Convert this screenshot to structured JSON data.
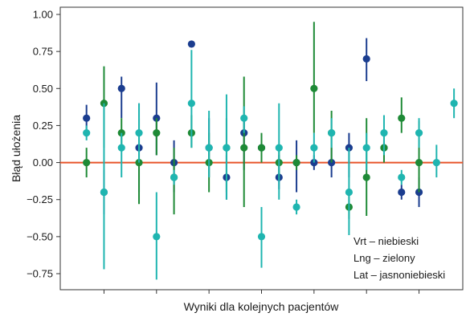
{
  "chart_data": {
    "type": "scatter",
    "title": "",
    "xlabel": "Wyniki dla kolejnych pacjentów",
    "ylabel": "Błąd ułożenia",
    "ylim": [
      -0.84,
      1.02
    ],
    "yticks": [
      "1.00",
      "0.75",
      "0.50",
      "0.25",
      "0.00",
      "−0.25",
      "−0.50",
      "−0.75"
    ],
    "ytick_values": [
      1.0,
      0.75,
      0.5,
      0.25,
      0.0,
      -0.25,
      -0.5,
      -0.75
    ],
    "xlim": [
      0,
      22
    ],
    "xticks": [
      2,
      5,
      8,
      11,
      14,
      17,
      20
    ],
    "grid": false,
    "reference_line": {
      "y": 0.0,
      "color": "#e8542a"
    },
    "legend_placement": "bottom-right",
    "legend_lines": [
      "Vrt – niebieski",
      "Lng – zielony",
      "Lat – jasnoniebieski"
    ],
    "series": [
      {
        "key": "vrt",
        "color": "#1b3d8f",
        "points": [
          {
            "x": 1,
            "y": 0.3,
            "lo": 0.2,
            "hi": 0.39
          },
          {
            "x": 2,
            "y": -0.2,
            "lo": -0.35,
            "hi": -0.05
          },
          {
            "x": 3,
            "y": 0.5,
            "lo": 0.3,
            "hi": 0.58
          },
          {
            "x": 4,
            "y": 0.1,
            "lo": -0.2,
            "hi": 0.4
          },
          {
            "x": 5,
            "y": 0.3,
            "lo": 0.05,
            "hi": 0.54
          },
          {
            "x": 6,
            "y": 0.0,
            "lo": -0.2,
            "hi": 0.15
          },
          {
            "x": 7,
            "y": 0.8,
            "lo": 0.8,
            "hi": 0.8
          },
          {
            "x": 8,
            "y": 0.1,
            "lo": -0.1,
            "hi": 0.3
          },
          {
            "x": 9,
            "y": -0.1,
            "lo": -0.25,
            "hi": 0.05
          },
          {
            "x": 10,
            "y": 0.2,
            "lo": -0.05,
            "hi": 0.3
          },
          {
            "x": 11,
            "y": 0.1,
            "lo": 0.05,
            "hi": 0.15
          },
          {
            "x": 12,
            "y": -0.1,
            "lo": -0.18,
            "hi": 0.05
          },
          {
            "x": 13,
            "y": 0.0,
            "lo": -0.2,
            "hi": 0.15
          },
          {
            "x": 14,
            "y": 0.0,
            "lo": -0.05,
            "hi": 0.05
          },
          {
            "x": 15,
            "y": 0.0,
            "lo": -0.1,
            "hi": 0.1
          },
          {
            "x": 16,
            "y": 0.1,
            "lo": -0.1,
            "hi": 0.2
          },
          {
            "x": 17,
            "y": 0.7,
            "lo": 0.55,
            "hi": 0.84
          },
          {
            "x": 18,
            "y": 0.1,
            "lo": 0.05,
            "hi": 0.15
          },
          {
            "x": 19,
            "y": -0.2,
            "lo": -0.25,
            "hi": -0.15
          },
          {
            "x": 20,
            "y": -0.2,
            "lo": -0.3,
            "hi": -0.1
          }
        ]
      },
      {
        "key": "lng",
        "color": "#1e8a36",
        "points": [
          {
            "x": 1,
            "y": 0.0,
            "lo": -0.1,
            "hi": 0.1
          },
          {
            "x": 2,
            "y": 0.4,
            "lo": 0.1,
            "hi": 0.65
          },
          {
            "x": 3,
            "y": 0.2,
            "lo": 0.1,
            "hi": 0.3
          },
          {
            "x": 4,
            "y": 0.0,
            "lo": -0.28,
            "hi": 0.3
          },
          {
            "x": 5,
            "y": 0.2,
            "lo": 0.05,
            "hi": 0.3
          },
          {
            "x": 6,
            "y": -0.1,
            "lo": -0.35,
            "hi": 0.1
          },
          {
            "x": 7,
            "y": 0.2,
            "lo": 0.1,
            "hi": 0.32
          },
          {
            "x": 8,
            "y": 0.0,
            "lo": -0.2,
            "hi": 0.2
          },
          {
            "x": 9,
            "y": 0.1,
            "lo": -0.2,
            "hi": 0.3
          },
          {
            "x": 10,
            "y": 0.1,
            "lo": -0.3,
            "hi": 0.58
          },
          {
            "x": 11,
            "y": 0.1,
            "lo": 0.0,
            "hi": 0.2
          },
          {
            "x": 12,
            "y": 0.0,
            "lo": -0.1,
            "hi": 0.08
          },
          {
            "x": 13,
            "y": 0.0,
            "lo": -0.05,
            "hi": 0.05
          },
          {
            "x": 14,
            "y": 0.5,
            "lo": 0.2,
            "hi": 0.95
          },
          {
            "x": 15,
            "y": 0.2,
            "lo": 0.0,
            "hi": 0.35
          },
          {
            "x": 16,
            "y": -0.3,
            "lo": -0.38,
            "hi": -0.2
          },
          {
            "x": 17,
            "y": -0.1,
            "lo": -0.36,
            "hi": 0.3
          },
          {
            "x": 18,
            "y": 0.1,
            "lo": 0.0,
            "hi": 0.2
          },
          {
            "x": 19,
            "y": 0.3,
            "lo": 0.2,
            "hi": 0.44
          },
          {
            "x": 20,
            "y": 0.0,
            "lo": -0.2,
            "hi": 0.28
          }
        ]
      },
      {
        "key": "lat",
        "color": "#1fb5b0",
        "points": [
          {
            "x": 1,
            "y": 0.2,
            "lo": 0.15,
            "hi": 0.25
          },
          {
            "x": 2,
            "y": -0.2,
            "lo": -0.72,
            "hi": 0.4
          },
          {
            "x": 3,
            "y": 0.1,
            "lo": -0.1,
            "hi": 0.2
          },
          {
            "x": 4,
            "y": 0.2,
            "lo": 0.0,
            "hi": 0.4
          },
          {
            "x": 5,
            "y": -0.5,
            "lo": -0.79,
            "hi": -0.2
          },
          {
            "x": 6,
            "y": -0.1,
            "lo": -0.15,
            "hi": -0.05
          },
          {
            "x": 7,
            "y": 0.4,
            "lo": 0.1,
            "hi": 0.76
          },
          {
            "x": 8,
            "y": 0.1,
            "lo": -0.1,
            "hi": 0.35
          },
          {
            "x": 9,
            "y": 0.1,
            "lo": -0.25,
            "hi": 0.46
          },
          {
            "x": 10,
            "y": 0.3,
            "lo": 0.2,
            "hi": 0.38
          },
          {
            "x": 11,
            "y": -0.5,
            "lo": -0.71,
            "hi": -0.3
          },
          {
            "x": 12,
            "y": 0.1,
            "lo": -0.25,
            "hi": 0.4
          },
          {
            "x": 13,
            "y": -0.3,
            "lo": -0.35,
            "hi": -0.25
          },
          {
            "x": 14,
            "y": 0.1,
            "lo": 0.0,
            "hi": 0.2
          },
          {
            "x": 15,
            "y": 0.2,
            "lo": 0.1,
            "hi": 0.3
          },
          {
            "x": 16,
            "y": -0.2,
            "lo": -0.49,
            "hi": 0.1
          },
          {
            "x": 17,
            "y": 0.1,
            "lo": -0.05,
            "hi": 0.2
          },
          {
            "x": 18,
            "y": 0.2,
            "lo": 0.05,
            "hi": 0.32
          },
          {
            "x": 19,
            "y": -0.1,
            "lo": -0.15,
            "hi": -0.05
          },
          {
            "x": 20,
            "y": 0.2,
            "lo": 0.1,
            "hi": 0.3
          },
          {
            "x": 21,
            "y": 0.0,
            "lo": -0.1,
            "hi": 0.12
          },
          {
            "x": 22,
            "y": 0.4,
            "lo": 0.3,
            "hi": 0.5
          }
        ]
      }
    ]
  }
}
